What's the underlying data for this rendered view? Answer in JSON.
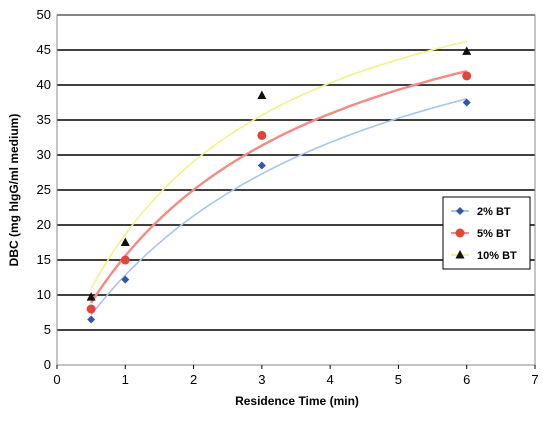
{
  "chart_data": {
    "type": "scatter",
    "title": "",
    "xlabel": "Residence Time (min)",
    "ylabel": "DBC (mg hIgG/ml medium)",
    "xlim": [
      0,
      7
    ],
    "ylim": [
      0,
      50
    ],
    "x_ticks": [
      "0",
      "1",
      "2",
      "3",
      "4",
      "5",
      "6",
      "7"
    ],
    "y_ticks": [
      "0",
      "5",
      "10",
      "15",
      "20",
      "25",
      "30",
      "35",
      "40",
      "45",
      "50"
    ],
    "grid": "horizontal",
    "legend_position": "right",
    "series": [
      {
        "name": "2% BT",
        "marker": "diamond",
        "color": "#3355aa",
        "line_color": "#a8c4ef",
        "x": [
          0.5,
          1,
          3,
          6
        ],
        "y": [
          6.5,
          12.2,
          28.5,
          37.5
        ]
      },
      {
        "name": "5% BT",
        "marker": "circle",
        "color": "#e0453a",
        "line_color": "#f38a84",
        "x": [
          0.5,
          1,
          3,
          6
        ],
        "y": [
          8.0,
          15.0,
          32.8,
          41.3
        ]
      },
      {
        "name": "10% BT",
        "marker": "triangle",
        "color": "#111111",
        "line_color": "#f4f08a",
        "x": [
          0.5,
          1,
          3,
          6
        ],
        "y": [
          9.7,
          17.5,
          38.5,
          44.8
        ]
      }
    ]
  }
}
